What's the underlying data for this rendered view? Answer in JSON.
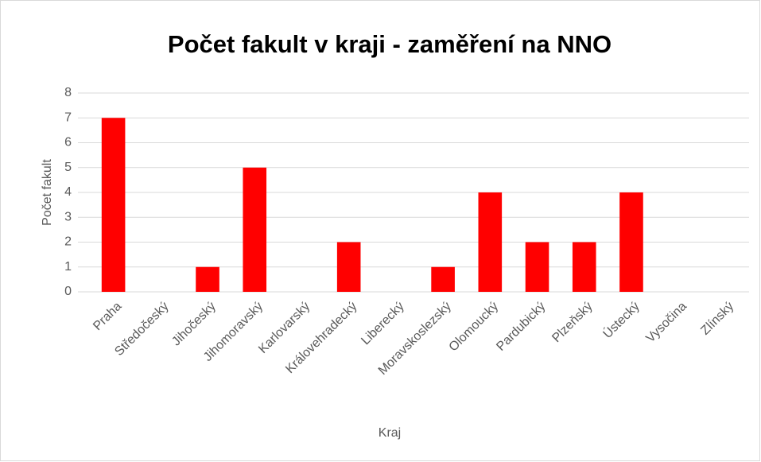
{
  "chart_data": {
    "type": "bar",
    "title": "Počet fakult v kraji - zaměření na NNO",
    "x_label": "Kraj",
    "y_label": "Počet fakult",
    "categories": [
      "Praha",
      "Středočeský",
      "Jihočeský",
      "Jihomoravský",
      "Karlovarský",
      "Královehradecký",
      "Liberecký",
      "Moravskoslezský",
      "Olomoucký",
      "Pardubický",
      "Plzeňský",
      "Ústecký",
      "Vysočina",
      "Zlínský"
    ],
    "values": [
      7,
      0,
      1,
      5,
      0,
      2,
      0,
      1,
      4,
      2,
      2,
      4,
      0,
      0
    ],
    "color": "#ff0000",
    "ylim": [
      0,
      8
    ],
    "yticks": [
      0,
      1,
      2,
      3,
      4,
      5,
      6,
      7,
      8
    ],
    "grid": true
  }
}
